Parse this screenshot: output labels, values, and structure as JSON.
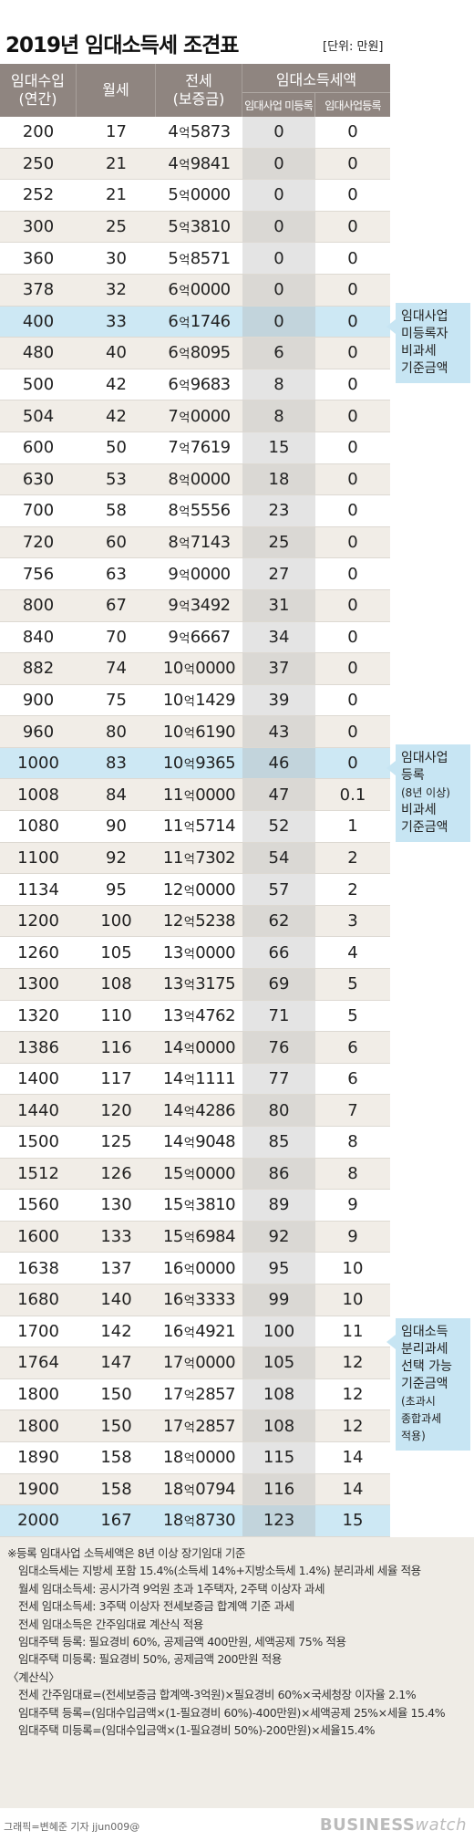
{
  "title": "2019년 임대소득세 조견표",
  "unit": "[단위: 만원]",
  "headers": {
    "rent_line1": "임대수입",
    "rent_line2": "(연간)",
    "monthly": "월세",
    "jeonse_line1": "전세",
    "jeonse_line2": "(보증금)",
    "tax_group": "임대소득세액",
    "unregistered": "임대사업 미등록",
    "registered": "임대사업등록"
  },
  "rows": [
    {
      "rent": "200",
      "monthly": "17",
      "j1": "4",
      "jm": "억",
      "j2": "5873",
      "un": "0",
      "reg": "0"
    },
    {
      "rent": "250",
      "monthly": "21",
      "j1": "4",
      "jm": "억",
      "j2": "9841",
      "un": "0",
      "reg": "0"
    },
    {
      "rent": "252",
      "monthly": "21",
      "j1": "5",
      "jm": "억",
      "j2": "0000",
      "un": "0",
      "reg": "0"
    },
    {
      "rent": "300",
      "monthly": "25",
      "j1": "5",
      "jm": "억",
      "j2": "3810",
      "un": "0",
      "reg": "0"
    },
    {
      "rent": "360",
      "monthly": "30",
      "j1": "5",
      "jm": "억",
      "j2": "8571",
      "un": "0",
      "reg": "0"
    },
    {
      "rent": "378",
      "monthly": "32",
      "j1": "6",
      "jm": "억",
      "j2": "0000",
      "un": "0",
      "reg": "0"
    },
    {
      "rent": "400",
      "monthly": "33",
      "j1": "6",
      "jm": "억",
      "j2": "1746",
      "un": "0",
      "reg": "0"
    },
    {
      "rent": "480",
      "monthly": "40",
      "j1": "6",
      "jm": "억",
      "j2": "8095",
      "un": "6",
      "reg": "0"
    },
    {
      "rent": "500",
      "monthly": "42",
      "j1": "6",
      "jm": "억",
      "j2": "9683",
      "un": "8",
      "reg": "0"
    },
    {
      "rent": "504",
      "monthly": "42",
      "j1": "7",
      "jm": "억",
      "j2": "0000",
      "un": "8",
      "reg": "0"
    },
    {
      "rent": "600",
      "monthly": "50",
      "j1": "7",
      "jm": "억",
      "j2": "7619",
      "un": "15",
      "reg": "0"
    },
    {
      "rent": "630",
      "monthly": "53",
      "j1": "8",
      "jm": "억",
      "j2": "0000",
      "un": "18",
      "reg": "0"
    },
    {
      "rent": "700",
      "monthly": "58",
      "j1": "8",
      "jm": "억",
      "j2": "5556",
      "un": "23",
      "reg": "0"
    },
    {
      "rent": "720",
      "monthly": "60",
      "j1": "8",
      "jm": "억",
      "j2": "7143",
      "un": "25",
      "reg": "0"
    },
    {
      "rent": "756",
      "monthly": "63",
      "j1": "9",
      "jm": "억",
      "j2": "0000",
      "un": "27",
      "reg": "0"
    },
    {
      "rent": "800",
      "monthly": "67",
      "j1": "9",
      "jm": "억",
      "j2": "3492",
      "un": "31",
      "reg": "0"
    },
    {
      "rent": "840",
      "monthly": "70",
      "j1": "9",
      "jm": "억",
      "j2": "6667",
      "un": "34",
      "reg": "0"
    },
    {
      "rent": "882",
      "monthly": "74",
      "j1": "10",
      "jm": "억",
      "j2": "0000",
      "un": "37",
      "reg": "0"
    },
    {
      "rent": "900",
      "monthly": "75",
      "j1": "10",
      "jm": "억",
      "j2": "1429",
      "un": "39",
      "reg": "0"
    },
    {
      "rent": "960",
      "monthly": "80",
      "j1": "10",
      "jm": "억",
      "j2": "6190",
      "un": "43",
      "reg": "0"
    },
    {
      "rent": "1000",
      "monthly": "83",
      "j1": "10",
      "jm": "억",
      "j2": "9365",
      "un": "46",
      "reg": "0"
    },
    {
      "rent": "1008",
      "monthly": "84",
      "j1": "11",
      "jm": "억",
      "j2": "0000",
      "un": "47",
      "reg": "0.1"
    },
    {
      "rent": "1080",
      "monthly": "90",
      "j1": "11",
      "jm": "억",
      "j2": "5714",
      "un": "52",
      "reg": "1"
    },
    {
      "rent": "1100",
      "monthly": "92",
      "j1": "11",
      "jm": "억",
      "j2": "7302",
      "un": "54",
      "reg": "2"
    },
    {
      "rent": "1134",
      "monthly": "95",
      "j1": "12",
      "jm": "억",
      "j2": "0000",
      "un": "57",
      "reg": "2"
    },
    {
      "rent": "1200",
      "monthly": "100",
      "j1": "12",
      "jm": "억",
      "j2": "5238",
      "un": "62",
      "reg": "3"
    },
    {
      "rent": "1260",
      "monthly": "105",
      "j1": "13",
      "jm": "억",
      "j2": "0000",
      "un": "66",
      "reg": "4"
    },
    {
      "rent": "1300",
      "monthly": "108",
      "j1": "13",
      "jm": "억",
      "j2": "3175",
      "un": "69",
      "reg": "5"
    },
    {
      "rent": "1320",
      "monthly": "110",
      "j1": "13",
      "jm": "억",
      "j2": "4762",
      "un": "71",
      "reg": "5"
    },
    {
      "rent": "1386",
      "monthly": "116",
      "j1": "14",
      "jm": "억",
      "j2": "0000",
      "un": "76",
      "reg": "6"
    },
    {
      "rent": "1400",
      "monthly": "117",
      "j1": "14",
      "jm": "억",
      "j2": "1111",
      "un": "77",
      "reg": "6"
    },
    {
      "rent": "1440",
      "monthly": "120",
      "j1": "14",
      "jm": "억",
      "j2": "4286",
      "un": "80",
      "reg": "7"
    },
    {
      "rent": "1500",
      "monthly": "125",
      "j1": "14",
      "jm": "억",
      "j2": "9048",
      "un": "85",
      "reg": "8"
    },
    {
      "rent": "1512",
      "monthly": "126",
      "j1": "15",
      "jm": "억",
      "j2": "0000",
      "un": "86",
      "reg": "8"
    },
    {
      "rent": "1560",
      "monthly": "130",
      "j1": "15",
      "jm": "억",
      "j2": "3810",
      "un": "89",
      "reg": "9"
    },
    {
      "rent": "1600",
      "monthly": "133",
      "j1": "15",
      "jm": "억",
      "j2": "6984",
      "un": "92",
      "reg": "9"
    },
    {
      "rent": "1638",
      "monthly": "137",
      "j1": "16",
      "jm": "억",
      "j2": "0000",
      "un": "95",
      "reg": "10"
    },
    {
      "rent": "1680",
      "monthly": "140",
      "j1": "16",
      "jm": "억",
      "j2": "3333",
      "un": "99",
      "reg": "10"
    },
    {
      "rent": "1700",
      "monthly": "142",
      "j1": "16",
      "jm": "억",
      "j2": "4921",
      "un": "100",
      "reg": "11"
    },
    {
      "rent": "1764",
      "monthly": "147",
      "j1": "17",
      "jm": "억",
      "j2": "0000",
      "un": "105",
      "reg": "12"
    },
    {
      "rent": "1800",
      "monthly": "150",
      "j1": "17",
      "jm": "억",
      "j2": "2857",
      "un": "108",
      "reg": "12"
    },
    {
      "rent": "1800",
      "monthly": "150",
      "j1": "17",
      "jm": "억",
      "j2": "2857",
      "un": "108",
      "reg": "12"
    },
    {
      "rent": "1890",
      "monthly": "158",
      "j1": "18",
      "jm": "억",
      "j2": "0000",
      "un": "115",
      "reg": "14"
    },
    {
      "rent": "1900",
      "monthly": "158",
      "j1": "18",
      "jm": "억",
      "j2": "0794",
      "un": "116",
      "reg": "14"
    },
    {
      "rent": "2000",
      "monthly": "167",
      "j1": "18",
      "jm": "억",
      "j2": "8730",
      "un": "123",
      "reg": "15"
    }
  ],
  "highlight_rows": [
    6,
    20,
    44
  ],
  "callouts": [
    {
      "lines": [
        "임대사업",
        "미등록자",
        "비과세",
        "기준금액"
      ]
    },
    {
      "lines": [
        "임대사업",
        "등록",
        "(8년 이상)",
        "비과세",
        "기준금액"
      ]
    },
    {
      "lines": [
        "임대소득",
        "분리과세",
        "선택 가능",
        "기준금액",
        "(초과시",
        "종합과세",
        "적용)"
      ]
    }
  ],
  "notes": [
    "※등록 임대사업 소득세액은 8년 이상 장기임대 기준",
    "임대소득세는 지방세 포함 15.4%(소득세 14%+지방소득세 1.4%) 분리과세 세율 적용",
    "월세 임대소득세: 공시가격 9억원 초과 1주택자, 2주택 이상자 과세",
    "전세 임대소득세: 3주택 이상자 전세보증금 합계액 기준 과세",
    "전세 임대소득은 간주임대료 계산식 적용",
    "임대주택 등록: 필요경비 60%, 공제금액 400만원, 세액공제 75% 적용",
    "임대주택 미등록: 필요경비 50%, 공제금액 200만원 적용",
    "〈계산식〉",
    "전세 간주임대료=(전세보증금 합계액-3억원)×필요경비 60%×국세청장 이자율 2.1%",
    "임대주택 등록=(임대수입금액×(1-필요경비 60%)-400만원)×세액공제 25%×세율 15.4%",
    "임대주택 미등록=(임대수입금액×(1-필요경비 50%)-200만원)×세율15.4%"
  ],
  "credit": "그래픽=변혜준 기자 jjun009@",
  "brand": {
    "bold": "BUSINESS",
    "light": "watch"
  },
  "colors": {
    "header_bg": "#8f8580",
    "highlight": "#cde8f4",
    "callout": "#c7e5f3",
    "stripe": "#f1ede7",
    "notes_bg": "#efece6"
  }
}
